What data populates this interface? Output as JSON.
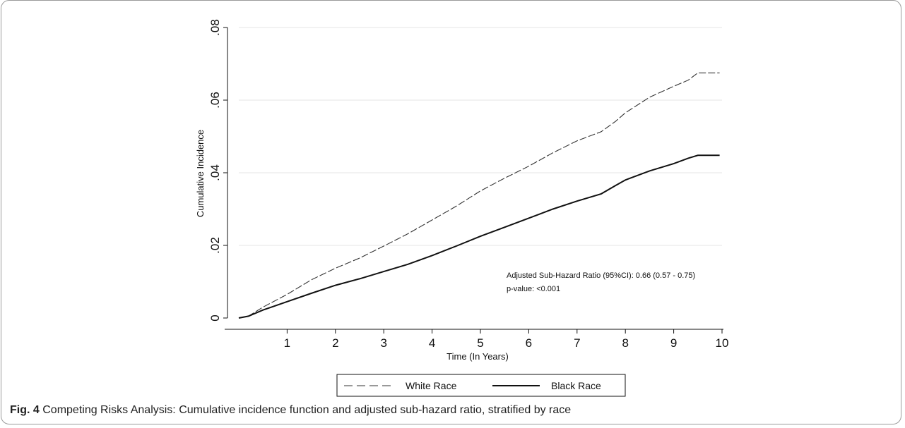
{
  "caption": {
    "label": "Fig. 4",
    "text": "Competing Risks Analysis: Cumulative incidence function and adjusted sub-hazard ratio, stratified by race"
  },
  "annotation": {
    "line1": "Adjusted Sub-Hazard Ratio (95%CI): 0.66 (0.57 - 0.75)",
    "line2": "p-value: <0.001"
  },
  "chart_data": {
    "type": "line",
    "title": "",
    "xlabel": "Time (In Years)",
    "ylabel": "Cumulative Incidence",
    "xlim": [
      0,
      10
    ],
    "ylim": [
      0,
      0.08
    ],
    "xticks": [
      1,
      2,
      3,
      4,
      5,
      6,
      7,
      8,
      9,
      10
    ],
    "yticks": [
      0,
      0.02,
      0.04,
      0.06,
      0.08
    ],
    "ytick_labels": [
      "0",
      ".02",
      ".04",
      ".06",
      ".08"
    ],
    "grid": "horizontal",
    "legend_position": "bottom",
    "series": [
      {
        "name": "White Race",
        "style": "dashed",
        "color": "#333333",
        "x": [
          0,
          0.2,
          0.5,
          1,
          1.5,
          2,
          2.5,
          3,
          3.5,
          4,
          4.5,
          5,
          5.5,
          6,
          6.5,
          7,
          7.5,
          7.8,
          8,
          8.5,
          9,
          9.3,
          9.5,
          9.95
        ],
        "y": [
          0,
          0.0005,
          0.003,
          0.0065,
          0.0105,
          0.0137,
          0.0165,
          0.0198,
          0.0232,
          0.027,
          0.0308,
          0.035,
          0.0385,
          0.0418,
          0.0455,
          0.0488,
          0.0513,
          0.0542,
          0.0565,
          0.0608,
          0.0638,
          0.0655,
          0.0675,
          0.0675
        ]
      },
      {
        "name": "Black Race",
        "style": "solid",
        "color": "#111111",
        "x": [
          0,
          0.2,
          0.5,
          1,
          1.5,
          2,
          2.5,
          3,
          3.5,
          4,
          4.5,
          5,
          5.5,
          6,
          6.5,
          7,
          7.5,
          7.8,
          8,
          8.5,
          9,
          9.3,
          9.5,
          9.95
        ],
        "y": [
          0,
          0.0005,
          0.0022,
          0.0045,
          0.0068,
          0.009,
          0.0108,
          0.0128,
          0.0148,
          0.0172,
          0.0198,
          0.0225,
          0.025,
          0.0275,
          0.03,
          0.0322,
          0.0342,
          0.0365,
          0.038,
          0.0405,
          0.0425,
          0.044,
          0.0448,
          0.0448
        ]
      }
    ]
  }
}
